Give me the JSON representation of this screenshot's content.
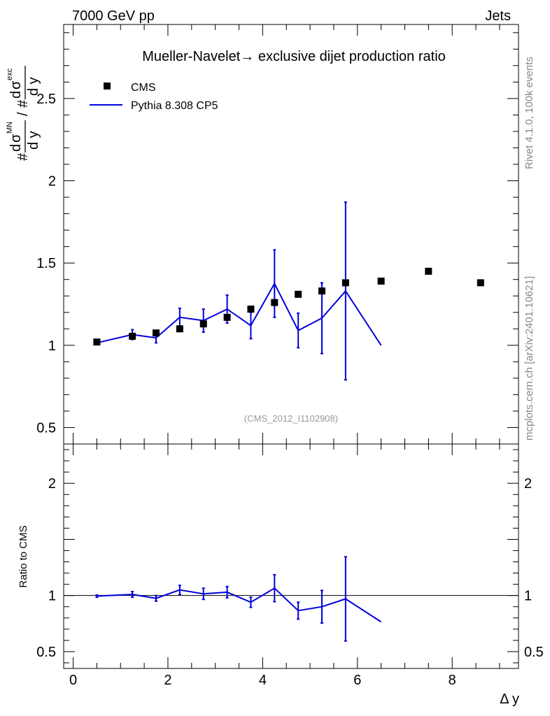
{
  "header": {
    "left": "7000 GeV pp",
    "right": "Jets"
  },
  "side_labels": {
    "rivet": "Rivet 4.1.0,  100k events",
    "mcplots": "mcplots.cern.ch [arXiv:2401.10621]"
  },
  "colors": {
    "data": "#000000",
    "mc": "#0000dd",
    "watermark": "#999999",
    "side_text": "#888888"
  },
  "chart_data": [
    {
      "type": "scatter",
      "panel": "main",
      "title": "Mueller-Navelet→ exclusive dijet production ratio",
      "watermark": "(CMS_2012_I1102908)",
      "ylabel_parts": {
        "hash1": "#",
        "d1": "d",
        "sigma1": "σ",
        "sup1": "MN",
        "den1": "d y",
        "slash": "/",
        "hash2": "#",
        "d2": "d",
        "sigma2": "σ",
        "sup2": "exc",
        "den2": "d y"
      },
      "xlabel": "",
      "xlim": [
        -0.2,
        9.4
      ],
      "ylim": [
        0.4,
        2.95
      ],
      "yticks": [
        "0.5",
        "1",
        "1.5",
        "2",
        "2.5"
      ],
      "legend": {
        "position": "top-left",
        "entries": [
          {
            "name": "CMS",
            "style": "marker"
          },
          {
            "name": "Pythia 8.308 CP5",
            "style": "line"
          }
        ]
      },
      "series": [
        {
          "name": "CMS",
          "x": [
            0.5,
            1.25,
            1.75,
            2.25,
            2.75,
            3.25,
            3.75,
            4.25,
            4.75,
            5.25,
            5.75,
            6.5,
            7.5,
            8.6
          ],
          "y": [
            1.02,
            1.055,
            1.075,
            1.1,
            1.13,
            1.17,
            1.22,
            1.26,
            1.31,
            1.33,
            1.38,
            1.39,
            1.45,
            1.38
          ]
        },
        {
          "name": "Pythia 8.308 CP5",
          "x": [
            0.5,
            1.25,
            1.75,
            2.25,
            2.75,
            3.25,
            3.75,
            4.25,
            4.75,
            5.25,
            5.75,
            6.5
          ],
          "y": [
            1.015,
            1.065,
            1.045,
            1.17,
            1.15,
            1.22,
            1.12,
            1.375,
            1.09,
            1.165,
            1.33,
            1.0
          ],
          "err_lo": [
            0.01,
            0.03,
            0.03,
            0.055,
            0.07,
            0.085,
            0.08,
            0.205,
            0.105,
            0.215,
            0.54,
            0.0
          ],
          "err_hi": [
            0.01,
            0.03,
            0.03,
            0.055,
            0.07,
            0.085,
            0.08,
            0.205,
            0.105,
            0.215,
            0.54,
            0.0
          ]
        }
      ]
    },
    {
      "type": "line",
      "panel": "ratio",
      "xlabel": "Δ y",
      "ylabel": "Ratio to CMS",
      "xlim": [
        -0.2,
        9.4
      ],
      "ylim": [
        0.35,
        2.35
      ],
      "xticks": [
        "0",
        "2",
        "4",
        "6",
        "8"
      ],
      "yticks": [
        "0.5",
        "1",
        "2"
      ],
      "reference_line": 1.0,
      "series": [
        {
          "name": "Pythia 8.308 CP5 / CMS",
          "x": [
            0.5,
            1.25,
            1.75,
            2.25,
            2.75,
            3.25,
            3.75,
            4.25,
            4.75,
            5.25,
            5.75,
            6.5
          ],
          "y": [
            0.995,
            1.01,
            0.975,
            1.05,
            1.015,
            1.03,
            0.94,
            1.065,
            0.865,
            0.9,
            0.97,
            0.765
          ],
          "err_lo": [
            0.01,
            0.025,
            0.025,
            0.04,
            0.05,
            0.05,
            0.045,
            0.12,
            0.075,
            0.145,
            0.375,
            0.0
          ],
          "err_hi": [
            0.01,
            0.025,
            0.025,
            0.04,
            0.05,
            0.05,
            0.045,
            0.12,
            0.075,
            0.145,
            0.375,
            0.0
          ]
        }
      ]
    }
  ]
}
